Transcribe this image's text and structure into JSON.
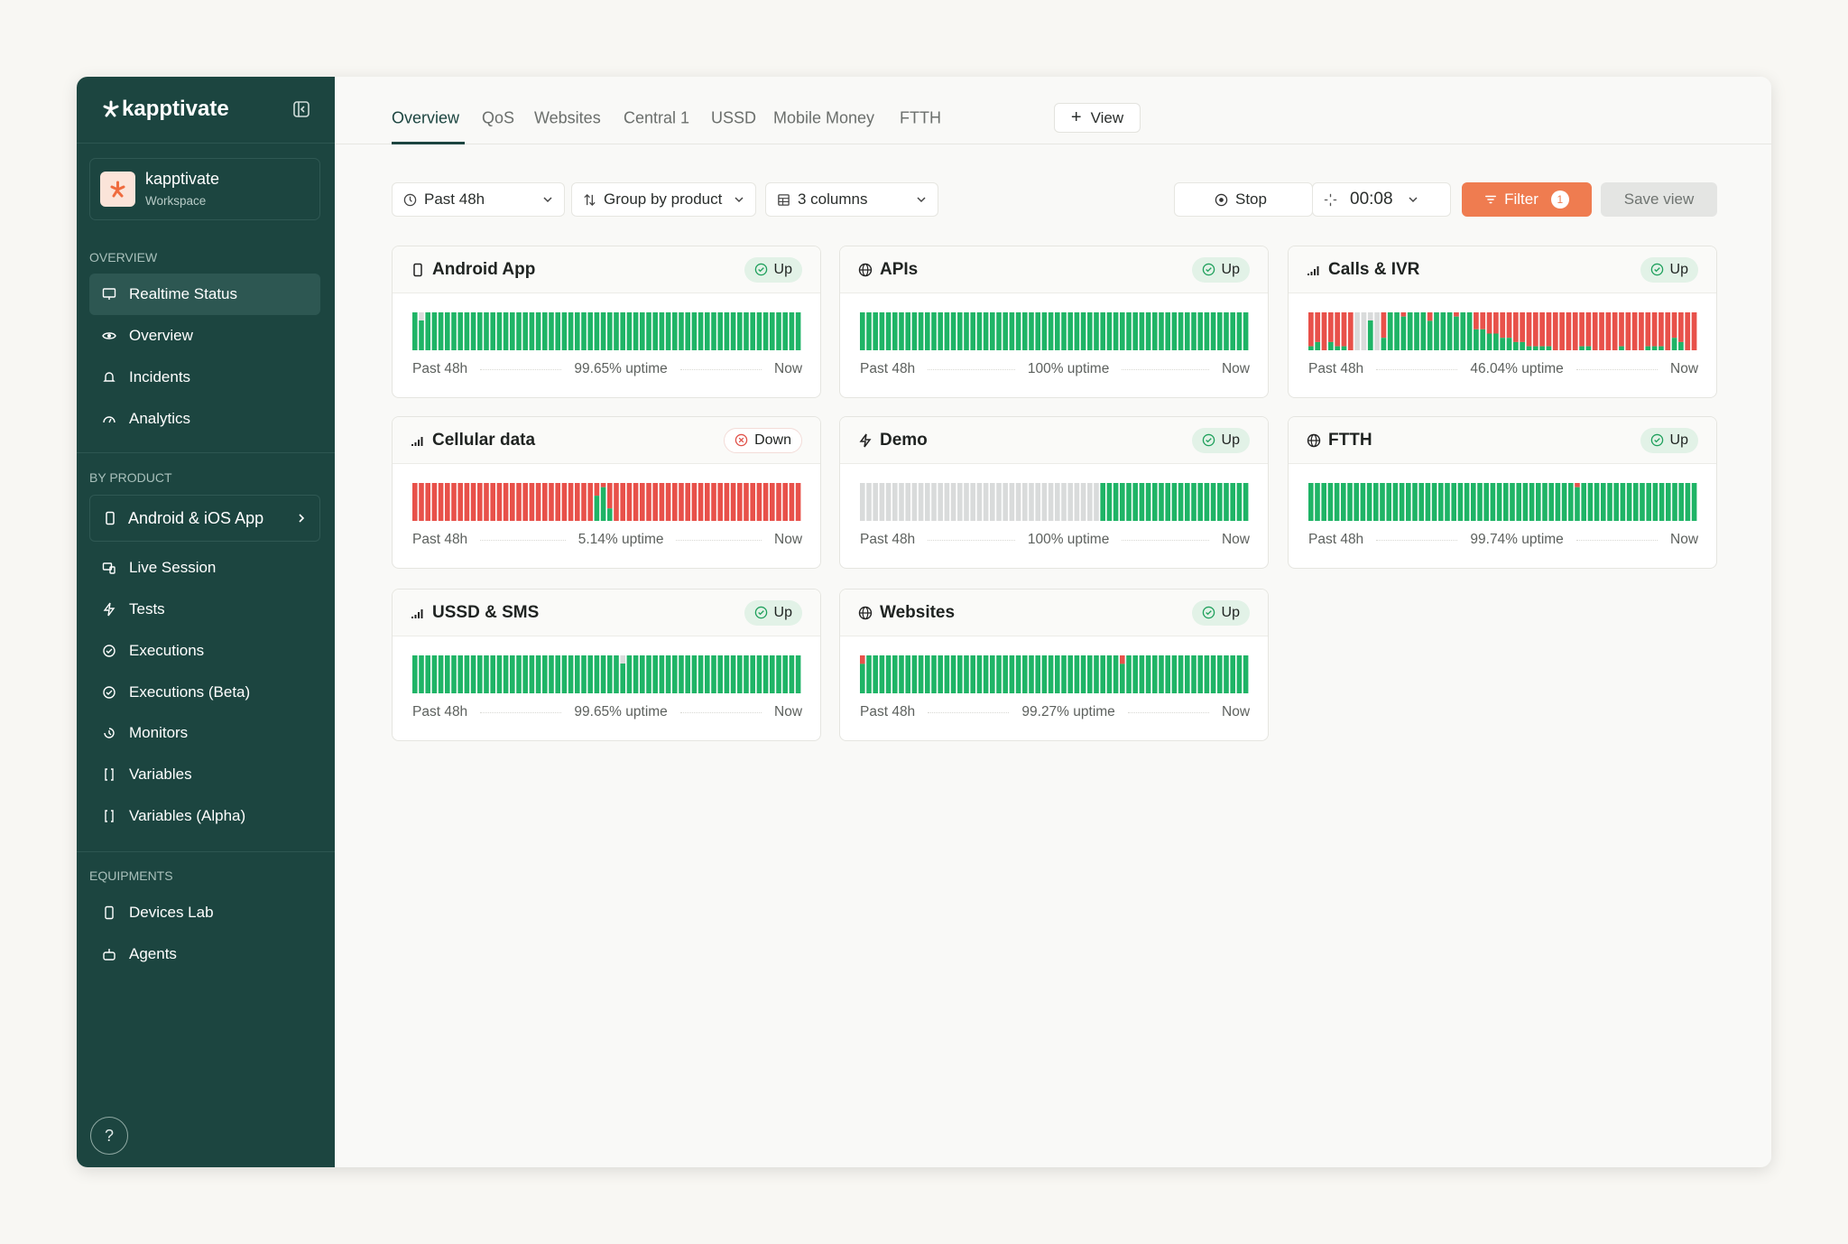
{
  "sidebar": {
    "brand": "kapptivate",
    "workspace": {
      "name": "kapptivate",
      "label": "Workspace"
    },
    "sections": [
      {
        "heading": "OVERVIEW",
        "items": [
          "Realtime Status",
          "Overview",
          "Incidents",
          "Analytics"
        ]
      },
      {
        "heading": "BY PRODUCT",
        "selector": "Android & iOS App",
        "items": [
          "Live Session",
          "Tests",
          "Executions",
          "Executions (Beta)",
          "Monitors",
          "Variables",
          "Variables (Alpha)"
        ]
      },
      {
        "heading": "EQUIPMENTS",
        "items": [
          "Devices Lab",
          "Agents"
        ]
      }
    ],
    "help": "?"
  },
  "tabs": {
    "items": [
      "Overview",
      "QoS",
      "Websites",
      "Central 1",
      "USSD",
      "Mobile Money",
      "FTTH"
    ],
    "add": "View"
  },
  "toolbar": {
    "range": "Past 48h",
    "group": "Group by product",
    "columns": "3 columns",
    "stop": "Stop",
    "timer": "00:08",
    "filter": "Filter",
    "filter_count": 1,
    "save": "Save view"
  },
  "cards": [
    {
      "name": "Android App",
      "status": "Up",
      "start": "Past 48h",
      "uptime": "99.65% uptime",
      "end": "Now"
    },
    {
      "name": "APIs",
      "status": "Up",
      "start": "Past 48h",
      "uptime": "100% uptime",
      "end": "Now"
    },
    {
      "name": "Calls & IVR",
      "status": "Up",
      "start": "Past 48h",
      "uptime": "46.04% uptime",
      "end": "Now"
    },
    {
      "name": "Cellular data",
      "status": "Down",
      "start": "Past 48h",
      "uptime": "5.14% uptime",
      "end": "Now"
    },
    {
      "name": "Demo",
      "status": "Up",
      "start": "Past 48h",
      "uptime": "100% uptime",
      "end": "Now"
    },
    {
      "name": "FTTH",
      "status": "Up",
      "start": "Past 48h",
      "uptime": "99.74% uptime",
      "end": "Now"
    },
    {
      "name": "USSD & SMS",
      "status": "Up",
      "start": "Past 48h",
      "uptime": "99.65% uptime",
      "end": "Now"
    },
    {
      "name": "Websites",
      "status": "Up",
      "start": "Past 48h",
      "uptime": "99.27% uptime",
      "end": "Now"
    }
  ]
}
